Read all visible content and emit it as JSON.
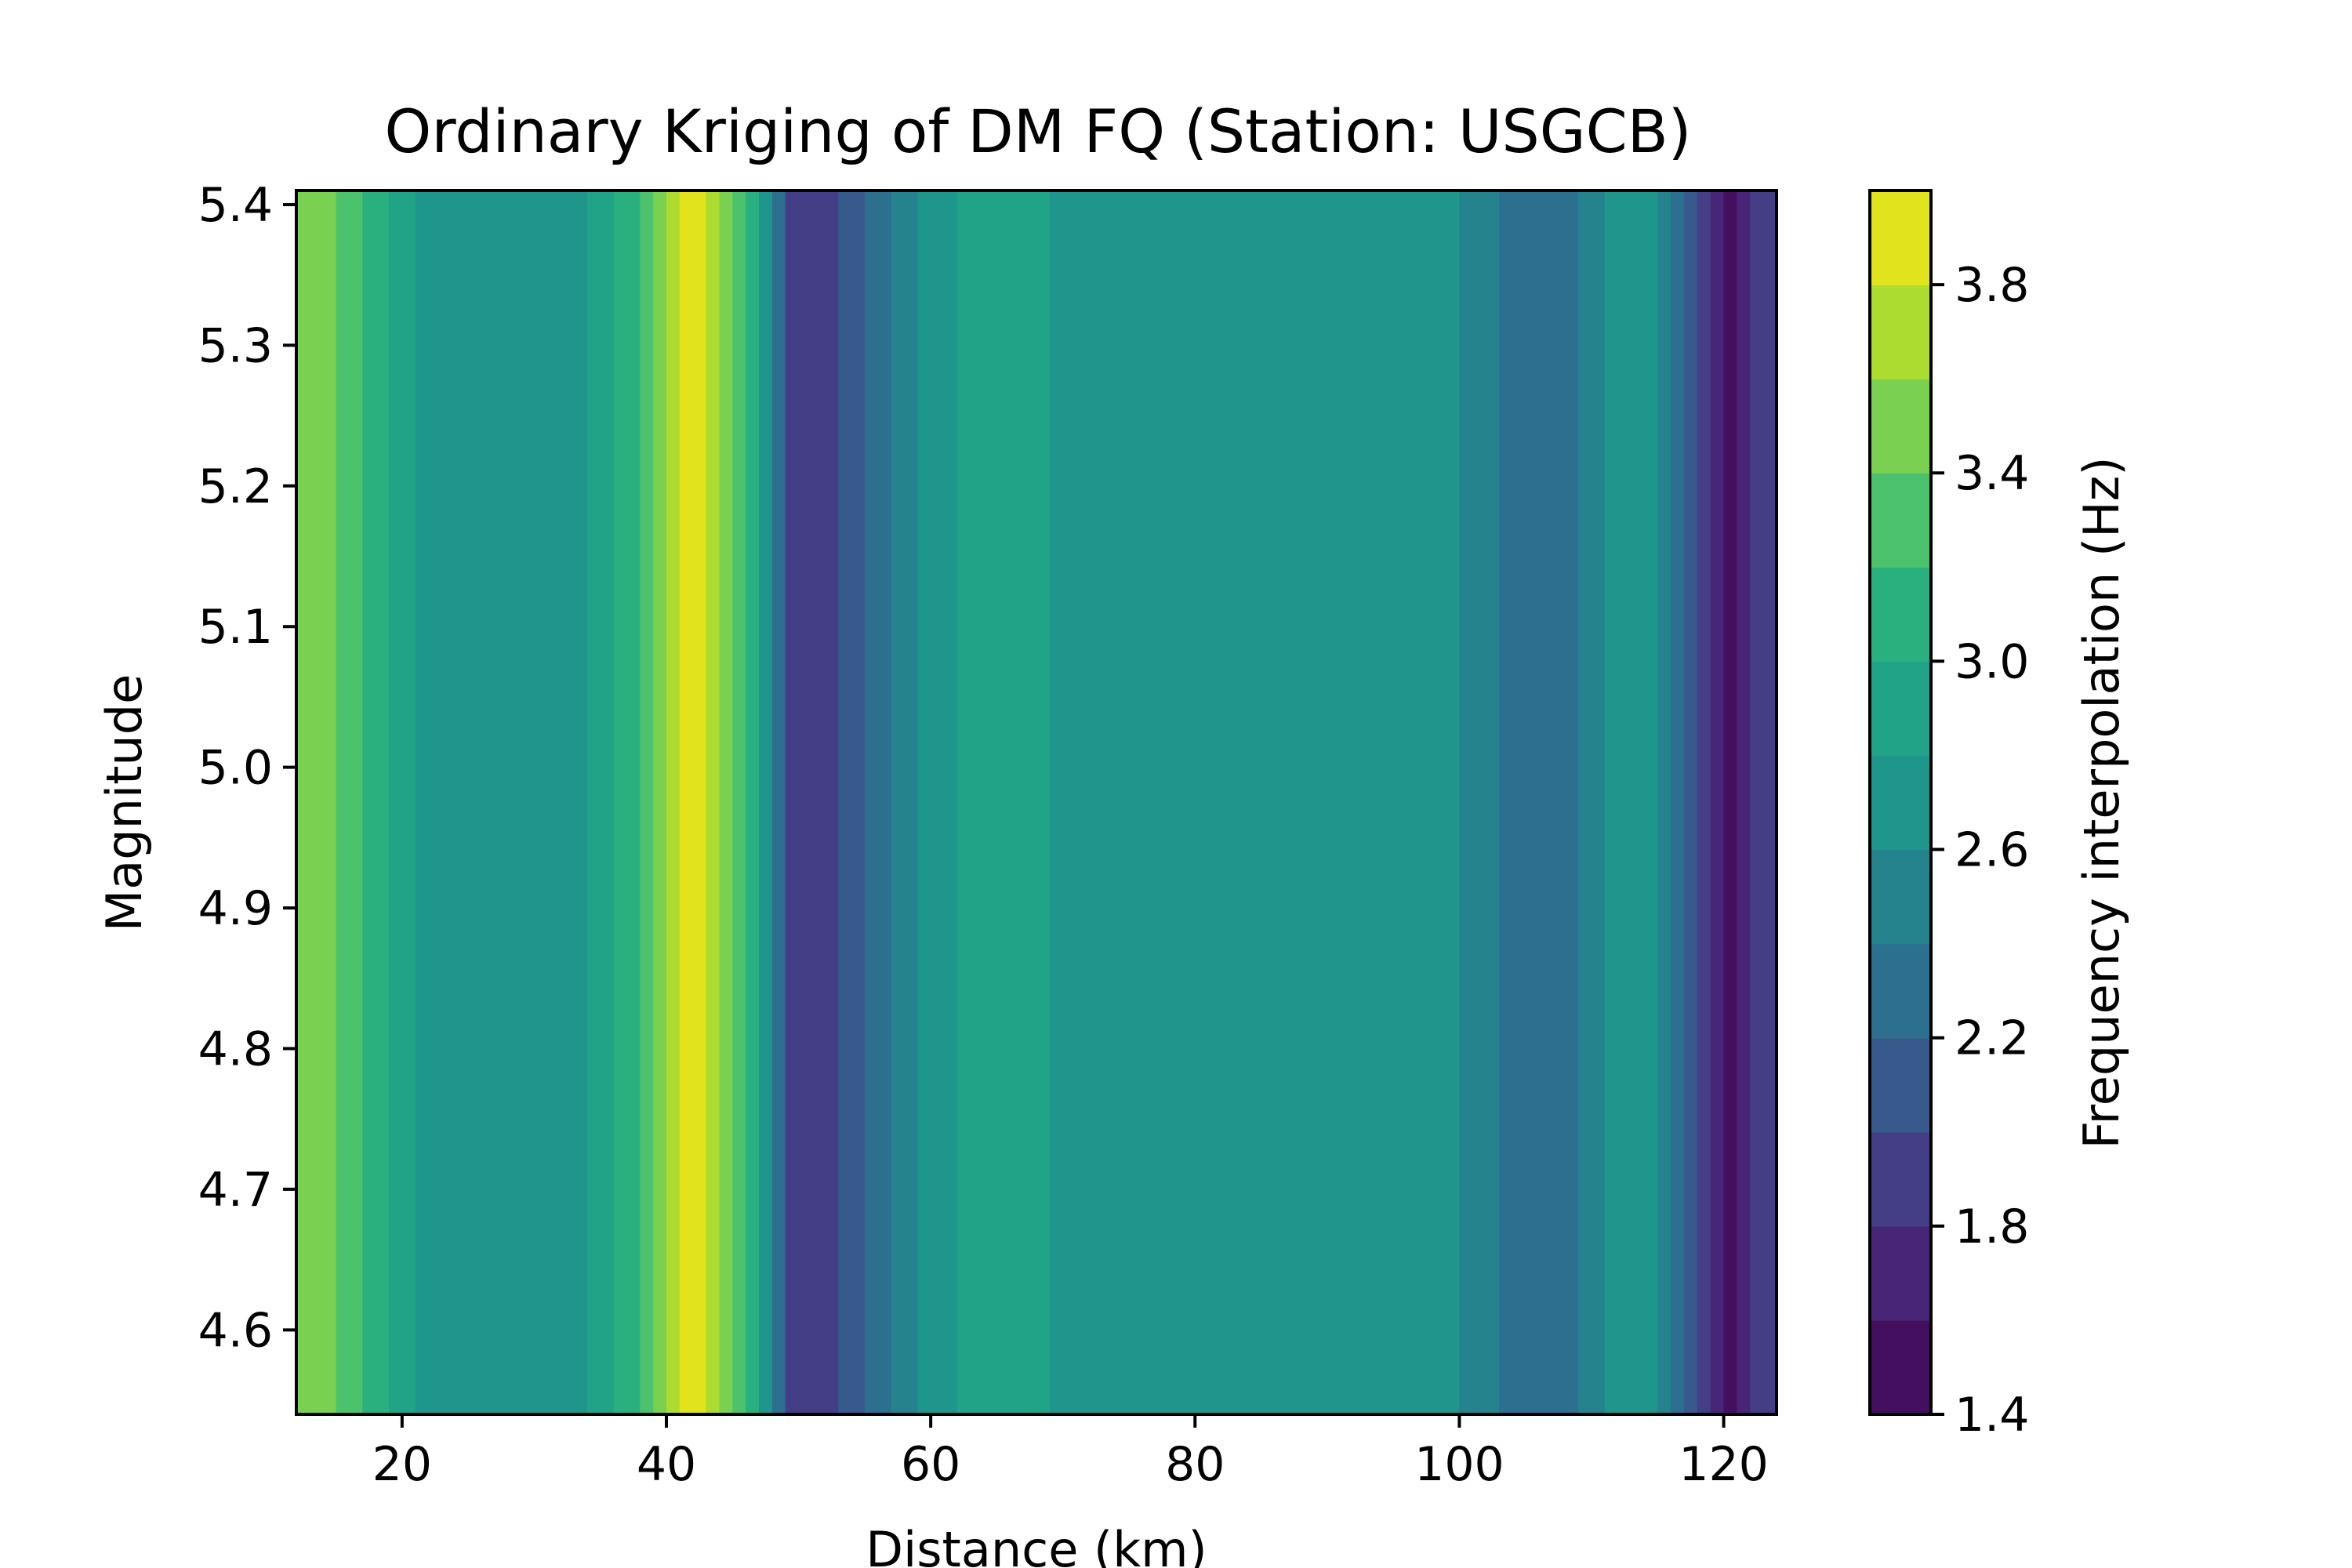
{
  "chart_data": {
    "type": "heatmap",
    "style": "filled-contour",
    "title": "Ordinary Kriging of DM FQ (Station: USGCB)",
    "xlabel": "Distance (km)",
    "ylabel": "Magnitude",
    "colorbar_label": "Frequency interpolation (Hz)",
    "xlim": [
      12,
      124
    ],
    "ylim": [
      4.54,
      5.41
    ],
    "x_ticks": [
      20,
      40,
      60,
      80,
      100,
      120
    ],
    "y_ticks": [
      4.6,
      4.7,
      4.8,
      4.9,
      5.0,
      5.1,
      5.2,
      5.3,
      5.4
    ],
    "x_tick_labels": [
      "20",
      "40",
      "60",
      "80",
      "100",
      "120"
    ],
    "y_tick_labels": [
      "4.6",
      "4.7",
      "4.8",
      "4.9",
      "5.0",
      "5.1",
      "5.2",
      "5.3",
      "5.4"
    ],
    "colorbar_ticks": [
      1.4,
      1.8,
      2.2,
      2.6,
      3.0,
      3.4,
      3.8
    ],
    "colorbar_tick_labels": [
      "1.4",
      "1.8",
      "2.2",
      "2.6",
      "3.0",
      "3.4",
      "3.8"
    ],
    "levels": [
      1.4,
      1.6,
      1.8,
      2.0,
      2.2,
      2.4,
      2.6,
      2.8,
      3.0,
      3.2,
      3.4,
      3.6,
      3.8,
      4.0
    ],
    "level_colors": [
      "#440f5f",
      "#482576",
      "#433e85",
      "#38598c",
      "#2d6f8e",
      "#25838e",
      "#1f968b",
      "#20a386",
      "#2ab07f",
      "#4cc26c",
      "#7ad151",
      "#addc30",
      "#e1e31d"
    ],
    "colormap": "viridis",
    "bands": [
      {
        "x": [
          12,
          15
        ],
        "value": 3.5
      },
      {
        "x": [
          15,
          17
        ],
        "value": 3.3
      },
      {
        "x": [
          17,
          19
        ],
        "value": 3.1
      },
      {
        "x": [
          19,
          21
        ],
        "value": 2.9
      },
      {
        "x": [
          21,
          34
        ],
        "value": 2.7
      },
      {
        "x": [
          34,
          36
        ],
        "value": 2.9
      },
      {
        "x": [
          36,
          38
        ],
        "value": 3.1
      },
      {
        "x": [
          38,
          39
        ],
        "value": 3.3
      },
      {
        "x": [
          39,
          40
        ],
        "value": 3.5
      },
      {
        "x": [
          40,
          41
        ],
        "value": 3.7
      },
      {
        "x": [
          41,
          43
        ],
        "value": 3.9
      },
      {
        "x": [
          43,
          44
        ],
        "value": 3.7
      },
      {
        "x": [
          44,
          45
        ],
        "value": 3.5
      },
      {
        "x": [
          45,
          46
        ],
        "value": 3.3
      },
      {
        "x": [
          46,
          47
        ],
        "value": 3.1
      },
      {
        "x": [
          47,
          48
        ],
        "value": 2.7
      },
      {
        "x": [
          48,
          49
        ],
        "value": 2.3
      },
      {
        "x": [
          49,
          53
        ],
        "value": 1.9
      },
      {
        "x": [
          53,
          55
        ],
        "value": 2.1
      },
      {
        "x": [
          55,
          57
        ],
        "value": 2.3
      },
      {
        "x": [
          57,
          59
        ],
        "value": 2.5
      },
      {
        "x": [
          59,
          62
        ],
        "value": 2.7
      },
      {
        "x": [
          62,
          69
        ],
        "value": 2.9
      },
      {
        "x": [
          69,
          100
        ],
        "value": 2.7
      },
      {
        "x": [
          100,
          103
        ],
        "value": 2.5
      },
      {
        "x": [
          103,
          109
        ],
        "value": 2.3
      },
      {
        "x": [
          109,
          111
        ],
        "value": 2.5
      },
      {
        "x": [
          111,
          115
        ],
        "value": 2.7
      },
      {
        "x": [
          115,
          116
        ],
        "value": 2.5
      },
      {
        "x": [
          116,
          117
        ],
        "value": 2.3
      },
      {
        "x": [
          117,
          118
        ],
        "value": 2.1
      },
      {
        "x": [
          118,
          119
        ],
        "value": 1.9
      },
      {
        "x": [
          119,
          120
        ],
        "value": 1.7
      },
      {
        "x": [
          120,
          121
        ],
        "value": 1.5
      },
      {
        "x": [
          121,
          122
        ],
        "value": 1.7
      },
      {
        "x": [
          122,
          124
        ],
        "value": 1.9
      }
    ]
  }
}
